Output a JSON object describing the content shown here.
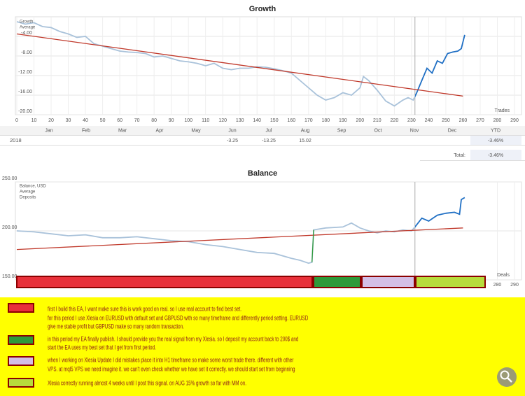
{
  "chart_data": [
    {
      "type": "line",
      "title": "Growth",
      "xlabel": "Trades",
      "xlim": [
        0,
        290
      ],
      "xticks": [
        0,
        10,
        20,
        30,
        40,
        50,
        60,
        70,
        80,
        90,
        100,
        110,
        120,
        130,
        140,
        150,
        160,
        170,
        180,
        190,
        200,
        210,
        220,
        230,
        240,
        250,
        260,
        270,
        280,
        290
      ],
      "ylim": [
        -20,
        0
      ],
      "yticks": [
        {
          "value": -4,
          "label": "-4.00"
        },
        {
          "value": -8,
          "label": "-8.00"
        },
        {
          "value": -12,
          "label": "-12.00"
        },
        {
          "value": -16,
          "label": "-16.00"
        },
        {
          "value": -20,
          "label": "-20.00"
        }
      ],
      "grid": true,
      "marker_x": 232,
      "highlight_color": "#1f6fc4",
      "series": [
        {
          "name": "Growth",
          "color": "#a9c2da",
          "x": [
            0,
            5,
            10,
            15,
            20,
            25,
            30,
            35,
            40,
            45,
            50,
            55,
            60,
            65,
            70,
            75,
            80,
            85,
            90,
            95,
            100,
            105,
            110,
            115,
            120,
            125,
            130,
            135,
            140,
            145,
            150,
            155,
            160,
            165,
            170,
            175,
            180,
            185,
            190,
            195,
            200,
            202,
            205,
            210,
            215,
            220,
            225,
            228,
            231,
            233,
            236,
            239,
            242,
            245,
            248,
            251,
            254,
            257,
            259,
            261
          ],
          "values": [
            -1,
            -1.5,
            -1.2,
            -2,
            -2.2,
            -3,
            -3.5,
            -4.2,
            -4,
            -5.5,
            -6,
            -6.5,
            -7,
            -7.2,
            -7.3,
            -7.5,
            -8.2,
            -8,
            -8.5,
            -9,
            -9.2,
            -9.5,
            -10,
            -9.5,
            -10.5,
            -10.8,
            -10.5,
            -10.5,
            -10.2,
            -10.3,
            -10.6,
            -11,
            -11.5,
            -13,
            -14.5,
            -16,
            -17,
            -16.5,
            -15.5,
            -16,
            -14.5,
            -12.2,
            -13,
            -15,
            -17.2,
            -18.2,
            -17,
            -16.5,
            -17,
            -15.5,
            -13,
            -10.5,
            -11.5,
            -9,
            -9.5,
            -7.5,
            -7.2,
            -7,
            -6.5,
            -3.7
          ]
        },
        {
          "name": "Average",
          "color": "#c0392b",
          "x": [
            0,
            260
          ],
          "values": [
            -3.5,
            -16.2
          ]
        }
      ]
    },
    {
      "type": "line",
      "title": "Balance",
      "xlabel": "Deals",
      "xlim": [
        0,
        290
      ],
      "xticks": [
        280,
        290
      ],
      "ylim": [
        150,
        250
      ],
      "yticks": [
        {
          "value": 250,
          "label": "250.00"
        },
        {
          "value": 200,
          "label": "200.00"
        },
        {
          "value": 150,
          "label": "150.00"
        }
      ],
      "grid": true,
      "marker_x": 232,
      "highlight_color": "#1f6fc4",
      "series": [
        {
          "name": "Balance, USD",
          "color": "#a9c2da",
          "x": [
            0,
            10,
            20,
            30,
            40,
            50,
            60,
            70,
            80,
            90,
            100,
            110,
            120,
            130,
            140,
            150,
            160,
            165,
            170,
            172,
            173,
            180,
            190,
            195,
            200,
            205,
            210,
            215,
            220,
            225,
            230,
            232,
            236,
            240,
            245,
            250,
            255,
            258,
            259,
            261
          ],
          "values": [
            200,
            199,
            197,
            195,
            196,
            193,
            193,
            194,
            192,
            190,
            189,
            186,
            184,
            181,
            178,
            177,
            172,
            170,
            167,
            168,
            201,
            203,
            204,
            208,
            203,
            200,
            198,
            200,
            199,
            201,
            200,
            204,
            213,
            210,
            216,
            218,
            219,
            217,
            232,
            234
          ]
        },
        {
          "name": "Average",
          "color": "#c0392b",
          "x": [
            0,
            260
          ],
          "values": [
            181,
            203
          ]
        },
        {
          "name": "Deposits",
          "color": "#2e9a3a",
          "x": [
            172,
            173
          ],
          "values": [
            168,
            201
          ]
        }
      ]
    }
  ],
  "growth_table": {
    "columns": [
      "Jan",
      "Feb",
      "Mar",
      "Apr",
      "May",
      "Jun",
      "Jul",
      "Aug",
      "Sep",
      "Oct",
      "Nov",
      "Dec",
      "YTD"
    ],
    "rows": [
      {
        "year": "2018",
        "cells": [
          null,
          null,
          null,
          null,
          null,
          "-3.25",
          "-13.25",
          "15.02",
          null,
          null,
          null,
          null,
          "-3.46%"
        ]
      }
    ],
    "total_label": "Total:",
    "total_value": "-3.46%"
  },
  "annotations": [
    {
      "lines": [
        "first I build this EA, I want make sure this is work good on real. so I use real account to find best set.",
        "for this period I use Xlesia on EURUSD with default set and GBPUSD with so many timeframe and differently period setting. EURUSD",
        "give me stable profit but GBPUSD make so many random transaction."
      ]
    },
    {
      "lines": [
        "in this period my EA finally publish. I should provide you the real signal from my Xlesia. so I deposit my account back to 200$ and",
        "start the EA uses my best set that I get from first period."
      ]
    },
    {
      "lines": [
        "when I working on Xlesia Update I did mistakes place it into H1 timeframe so make some worst trade there. different with other",
        "VPS. at mql5 VPS we need imagine it. we can't even check whether we have set it correctly. we should start set from beginning"
      ]
    },
    {
      "lines": [
        "Xlesia correctly running almost 4 weeks until I post this signal. on AUG 15% growth so far with MM on."
      ]
    }
  ]
}
